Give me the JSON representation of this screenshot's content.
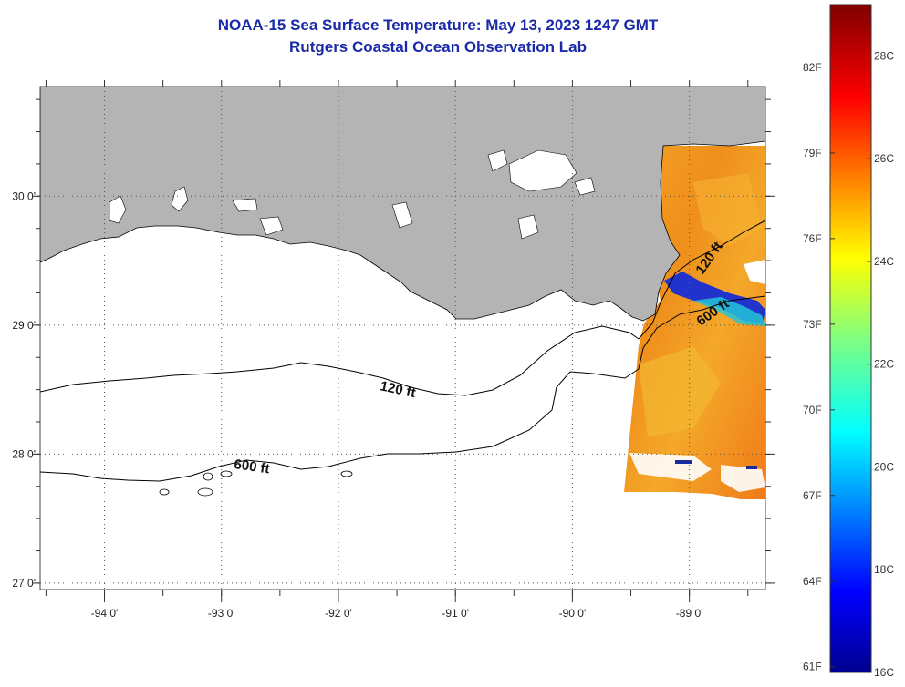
{
  "title": {
    "line1": "NOAA-15 Sea Surface Temperature:  May 13, 2023 1247 GMT",
    "line2": "Rutgers Coastal Ocean Observation Lab"
  },
  "map": {
    "lon_range": [
      -94.55,
      -88.35
    ],
    "lat_range": [
      26.95,
      30.85
    ],
    "lon_ticks": [
      {
        "value": -94,
        "label": "-94 0'"
      },
      {
        "value": -93,
        "label": "-93 0'"
      },
      {
        "value": -92,
        "label": "-92 0'"
      },
      {
        "value": -91,
        "label": "-91 0'"
      },
      {
        "value": -90,
        "label": "-90 0'"
      },
      {
        "value": -89,
        "label": "-89 0'"
      }
    ],
    "lat_ticks": [
      {
        "value": 30,
        "label": "30 0'"
      },
      {
        "value": 29,
        "label": "29 0'"
      },
      {
        "value": 28,
        "label": "28 0'"
      },
      {
        "value": 27,
        "label": "27 0'"
      }
    ],
    "land_color": "#b4b4b4",
    "contours": [
      {
        "label": "120 ft"
      },
      {
        "label": "600 ft"
      }
    ],
    "contour_labels_east": [
      "120 ft",
      "600 ft"
    ]
  },
  "colorbar": {
    "min_c": 16,
    "max_c": 29,
    "fahrenheit_labels": [
      "82F",
      "79F",
      "76F",
      "73F",
      "70F",
      "67F",
      "64F",
      "61F"
    ],
    "celsius_labels": [
      "28C",
      "26C",
      "24C",
      "22C",
      "20C",
      "18C",
      "16C"
    ]
  }
}
